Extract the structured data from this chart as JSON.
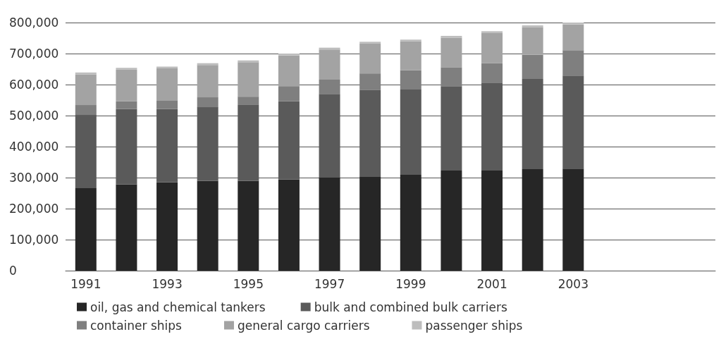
{
  "chart_data": {
    "type": "bar",
    "stacked": true,
    "categories": [
      "1991",
      null,
      "1993",
      null,
      "1995",
      null,
      "1997",
      null,
      "1999",
      null,
      "2001",
      null,
      "2003"
    ],
    "series": [
      {
        "name": "oil, gas and chemical tankers",
        "color": "#262626",
        "values": [
          266000,
          278000,
          285000,
          290000,
          290000,
          294000,
          300000,
          304000,
          309000,
          323000,
          323000,
          327000,
          329000
        ]
      },
      {
        "name": "bulk and combined bulk carriers",
        "color": "#5a5a5a",
        "values": [
          236000,
          243000,
          236000,
          237000,
          246000,
          252000,
          270000,
          278000,
          275000,
          272000,
          283000,
          291000,
          300000
        ]
      },
      {
        "name": "container ships",
        "color": "#7f7f7f",
        "values": [
          32000,
          25000,
          27000,
          32000,
          25000,
          49000,
          46000,
          54000,
          62000,
          61000,
          63000,
          78000,
          82000
        ]
      },
      {
        "name": "general cargo carriers",
        "color": "#a3a3a3",
        "values": [
          99000,
          102000,
          104000,
          104000,
          111000,
          99000,
          97000,
          96000,
          93000,
          95000,
          97000,
          89000,
          83000
        ]
      },
      {
        "name": "passenger ships",
        "color": "#bdbdbd",
        "values": [
          6000,
          6000,
          6000,
          6000,
          6000,
          6000,
          6000,
          6000,
          6000,
          6000,
          6000,
          6000,
          6000
        ]
      }
    ],
    "ylim": [
      0,
      800000
    ],
    "yticks": [
      0,
      {
        "value": 100000,
        "label": "100,000"
      },
      {
        "value": 200000,
        "label": "200,000"
      },
      {
        "value": 300000,
        "label": "300,000"
      },
      {
        "value": 400000,
        "label": "400,000"
      },
      {
        "value": 500000,
        "label": "500,000"
      },
      {
        "value": 600000,
        "label": "600,000"
      },
      {
        "value": 700000,
        "label": "700,000"
      },
      {
        "value": 800000,
        "label": "800,000"
      }
    ],
    "grid": "y",
    "legend": "bottom"
  }
}
